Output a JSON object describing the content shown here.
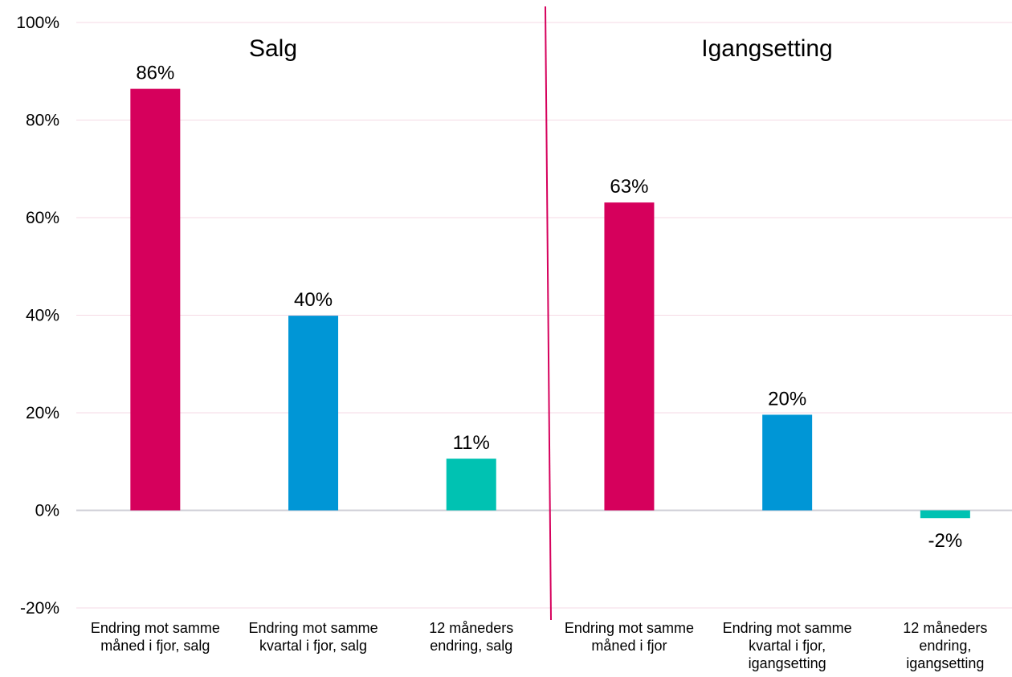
{
  "chart_data": {
    "type": "bar",
    "title": "",
    "xlabel": "",
    "ylabel": "",
    "ylim": [
      -20,
      100
    ],
    "yticks": [
      -20,
      0,
      20,
      40,
      60,
      80,
      100
    ],
    "y_tick_suffix": "%",
    "grid": true,
    "gridline_color": "#f5d9e4",
    "zero_line_color": "#d0d0d8",
    "divider_color": "#d6005c",
    "sections": [
      {
        "title": "Salg",
        "bars": [
          {
            "label": [
              "Endring mot samme",
              "måned i fjor, salg"
            ],
            "value": 86.4,
            "display": "86%",
            "color": "#d6005c"
          },
          {
            "label": [
              "Endring mot samme",
              "kvartal i fjor, salg"
            ],
            "value": 39.9,
            "display": "40%",
            "color": "#0096d6"
          },
          {
            "label": [
              "12 måneders",
              "endring, salg"
            ],
            "value": 10.6,
            "display": "11%",
            "color": "#00c2b2"
          }
        ]
      },
      {
        "title": "Igangsetting",
        "bars": [
          {
            "label": [
              "Endring mot samme",
              "måned i fjor"
            ],
            "value": 63.1,
            "display": "63%",
            "color": "#d6005c"
          },
          {
            "label": [
              "Endring mot samme",
              "kvartal i fjor,",
              "igangsetting"
            ],
            "value": 19.6,
            "display": "20%",
            "color": "#0096d6"
          },
          {
            "label": [
              "12 måneders",
              "endring,",
              "igangsetting"
            ],
            "value": -1.6,
            "display": "-2%",
            "color": "#00c2b2"
          }
        ]
      }
    ]
  }
}
